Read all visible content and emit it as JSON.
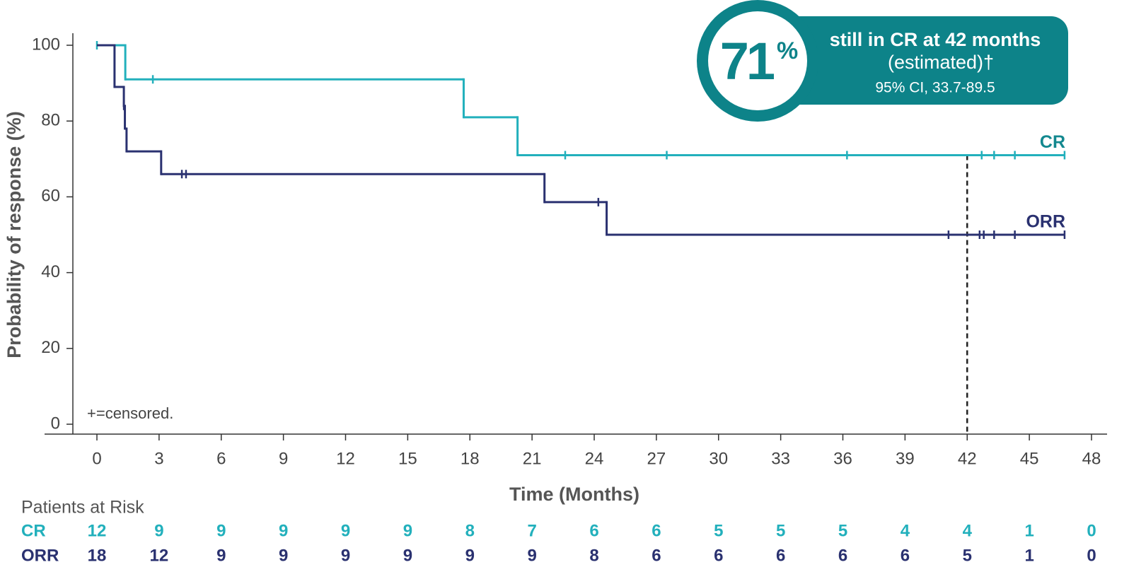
{
  "chart_data": {
    "type": "step",
    "y_label": "Probability of response (%)",
    "x_label": "Time (Months)",
    "note": "+=censored.",
    "xlim": [
      0,
      48
    ],
    "ylim": [
      0,
      100
    ],
    "xticks": [
      0,
      3,
      6,
      9,
      12,
      15,
      18,
      21,
      24,
      27,
      30,
      33,
      36,
      39,
      42,
      45,
      48
    ],
    "yticks": [
      0,
      20,
      40,
      60,
      80,
      100
    ],
    "series": [
      {
        "name": "CR",
        "color": "#22b0bc",
        "label_color": "#13888f",
        "x": [
          0,
          1.37,
          17.7,
          20.3,
          46.7
        ],
        "values": [
          100,
          91,
          81,
          71,
          71
        ],
        "censored": {
          "x": [
            0,
            2.7,
            22.6,
            27.5,
            36.2,
            42.7,
            43.3,
            44.3,
            46.7
          ],
          "values": [
            100,
            91,
            71,
            71,
            71,
            71,
            71,
            71,
            71
          ]
        }
      },
      {
        "name": "ORR",
        "color": "#2a3170",
        "label_color": "#2a3170",
        "x": [
          0,
          0.85,
          1.3,
          1.35,
          1.43,
          3.1,
          21.6,
          24.6,
          46.7
        ],
        "values": [
          100,
          89,
          84,
          78,
          72,
          66,
          58.6,
          50,
          50
        ],
        "censored": {
          "x": [
            1.3,
            4.1,
            4.3,
            24.2,
            41.1,
            42.6,
            42.8,
            43.3,
            44.3,
            46.7
          ],
          "values": [
            84,
            66,
            66,
            58.6,
            50,
            50,
            50,
            50,
            50,
            50
          ]
        }
      }
    ],
    "reference_line": {
      "x": 42,
      "y": 71
    },
    "callout": {
      "value": 71,
      "unit": "%",
      "title": "still in CR at 42 months",
      "subtitle": "(estimated)†",
      "ci": "95% CI, 33.7-89.5",
      "color": "#0d8389"
    },
    "risk_table": {
      "title": "Patients at Risk",
      "rows": [
        [
          12,
          9,
          9,
          9,
          9,
          9,
          8,
          7,
          6,
          6,
          5,
          5,
          5,
          4,
          4,
          1,
          0
        ],
        [
          18,
          12,
          9,
          9,
          9,
          9,
          9,
          9,
          8,
          6,
          6,
          6,
          6,
          6,
          5,
          1,
          0
        ]
      ]
    }
  }
}
